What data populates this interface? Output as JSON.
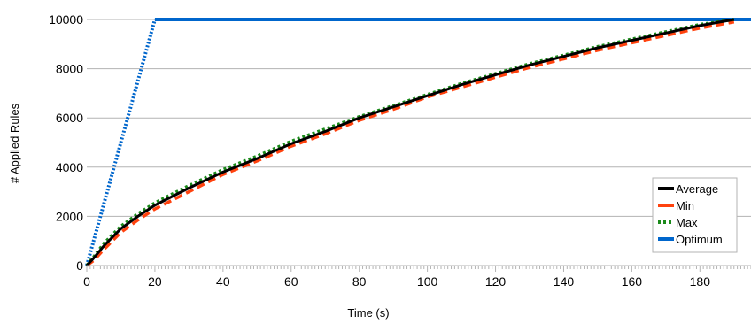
{
  "chart_data": {
    "type": "line",
    "title": "",
    "xlabel": "Time (s)",
    "ylabel": "# Applied Rules",
    "xlim": [
      0,
      195
    ],
    "ylim": [
      0,
      10000
    ],
    "x_ticks": [
      0,
      20,
      40,
      60,
      80,
      100,
      120,
      140,
      160,
      180
    ],
    "y_ticks": [
      0,
      2000,
      4000,
      6000,
      8000,
      10000
    ],
    "grid": "horizontal",
    "legend_position": "bottom-right",
    "series": [
      {
        "name": "Average",
        "color": "#000000",
        "style": "solid",
        "points": [
          [
            0,
            0
          ],
          [
            2,
            300
          ],
          [
            5,
            800
          ],
          [
            10,
            1500
          ],
          [
            15,
            2000
          ],
          [
            20,
            2450
          ],
          [
            30,
            3150
          ],
          [
            40,
            3800
          ],
          [
            50,
            4350
          ],
          [
            60,
            4950
          ],
          [
            70,
            5450
          ],
          [
            80,
            6000
          ],
          [
            90,
            6450
          ],
          [
            100,
            6900
          ],
          [
            110,
            7350
          ],
          [
            120,
            7750
          ],
          [
            130,
            8150
          ],
          [
            140,
            8500
          ],
          [
            150,
            8850
          ],
          [
            160,
            9150
          ],
          [
            170,
            9450
          ],
          [
            180,
            9750
          ],
          [
            190,
            10000
          ]
        ]
      },
      {
        "name": "Min",
        "color": "#ff420e",
        "style": "dashed",
        "points": [
          [
            0,
            0
          ],
          [
            2,
            200
          ],
          [
            5,
            650
          ],
          [
            10,
            1350
          ],
          [
            15,
            1850
          ],
          [
            20,
            2300
          ],
          [
            30,
            3000
          ],
          [
            40,
            3700
          ],
          [
            50,
            4250
          ],
          [
            60,
            4850
          ],
          [
            70,
            5350
          ],
          [
            80,
            5900
          ],
          [
            90,
            6350
          ],
          [
            100,
            6850
          ],
          [
            110,
            7250
          ],
          [
            120,
            7650
          ],
          [
            130,
            8050
          ],
          [
            140,
            8400
          ],
          [
            150,
            8750
          ],
          [
            160,
            9050
          ],
          [
            170,
            9350
          ],
          [
            180,
            9650
          ],
          [
            190,
            9900
          ]
        ]
      },
      {
        "name": "Max",
        "color": "#1a8a1a",
        "style": "dotted",
        "points": [
          [
            0,
            0
          ],
          [
            2,
            350
          ],
          [
            5,
            900
          ],
          [
            10,
            1600
          ],
          [
            15,
            2100
          ],
          [
            20,
            2550
          ],
          [
            30,
            3250
          ],
          [
            40,
            3900
          ],
          [
            50,
            4450
          ],
          [
            60,
            5050
          ],
          [
            70,
            5550
          ],
          [
            80,
            6050
          ],
          [
            90,
            6500
          ],
          [
            100,
            6950
          ],
          [
            110,
            7400
          ],
          [
            120,
            7800
          ],
          [
            130,
            8200
          ],
          [
            140,
            8550
          ],
          [
            150,
            8900
          ],
          [
            160,
            9200
          ],
          [
            170,
            9500
          ],
          [
            180,
            9800
          ],
          [
            190,
            10000
          ]
        ]
      },
      {
        "name": "Optimum",
        "color": "#0066cc",
        "style": "solid",
        "points": [
          [
            0,
            0
          ],
          [
            20,
            10000
          ],
          [
            195,
            10000
          ]
        ]
      }
    ]
  }
}
